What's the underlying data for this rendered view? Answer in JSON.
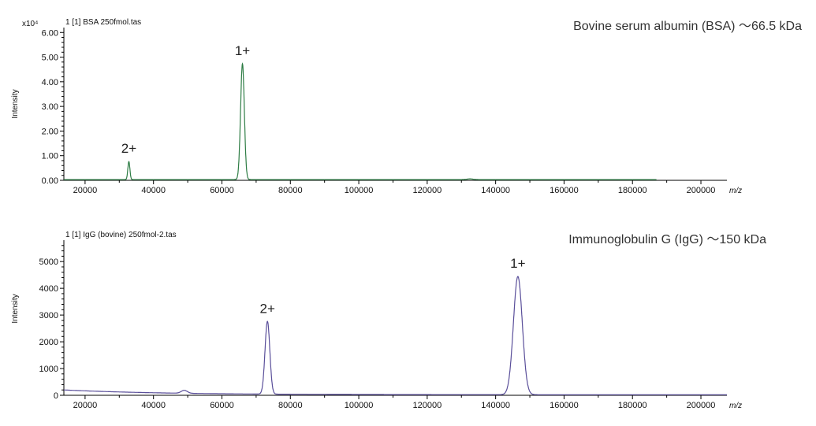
{
  "chart_data": [
    {
      "type": "line",
      "file_label": "1 [1] BSA 250fmol.tas",
      "title": "Bovine serum albumin (BSA) 〜66.5 kDa",
      "xlabel": "m/z",
      "ylabel": "Intensity",
      "y_multiplier": "x10⁴",
      "xlim": [
        13800,
        207600
      ],
      "ylim": [
        0,
        6.2
      ],
      "x_ticks": [
        20000,
        40000,
        60000,
        80000,
        100000,
        120000,
        140000,
        160000,
        180000,
        200000
      ],
      "x_tick_labels": [
        "20000",
        "40000",
        "60000",
        "80000",
        "100000",
        "120000",
        "140000",
        "160000",
        "180000",
        "200000"
      ],
      "y_ticks": [
        0,
        1,
        2,
        3,
        4,
        5,
        6
      ],
      "y_tick_labels": [
        "0.00",
        "1.00",
        "2.00",
        "3.00",
        "4.00",
        "5.00",
        "6.00"
      ],
      "color": "#2e7d45",
      "data_range": [
        13800,
        187000
      ],
      "baseline": 0.03,
      "peaks": [
        {
          "mz": 32800,
          "intensity": 0.73,
          "width": 300,
          "label": "2+"
        },
        {
          "mz": 66000,
          "intensity": 4.7,
          "width": 550,
          "label": "1+"
        },
        {
          "mz": 132500,
          "intensity": 0.03,
          "width": 800,
          "label": ""
        }
      ]
    },
    {
      "type": "line",
      "file_label": "1 [1] IgG (bovine) 250fmol-2.tas",
      "title": "Immunoglobulin G (IgG) 〜150 kDa",
      "xlabel": "m/z",
      "ylabel": "Intensity",
      "y_multiplier": "",
      "xlim": [
        13800,
        207600
      ],
      "ylim": [
        0,
        5800
      ],
      "x_ticks": [
        20000,
        40000,
        60000,
        80000,
        100000,
        120000,
        140000,
        160000,
        180000,
        200000
      ],
      "x_tick_labels": [
        "20000",
        "40000",
        "60000",
        "80000",
        "100000",
        "120000",
        "140000",
        "160000",
        "180000",
        "200000"
      ],
      "y_ticks": [
        0,
        1000,
        2000,
        3000,
        4000,
        5000
      ],
      "y_tick_labels": [
        "0",
        "1000",
        "2000",
        "3000",
        "4000",
        "5000"
      ],
      "color": "#5a4f9a",
      "data_range": [
        13800,
        207600
      ],
      "baseline_decay": {
        "start": 200,
        "end": 20,
        "scale": 30000
      },
      "peaks": [
        {
          "mz": 49000,
          "intensity": 110,
          "width": 900,
          "label": ""
        },
        {
          "mz": 73300,
          "intensity": 2720,
          "width": 700,
          "label": "2+"
        },
        {
          "mz": 146500,
          "intensity": 4420,
          "width": 1300,
          "label": "1+"
        }
      ]
    }
  ]
}
